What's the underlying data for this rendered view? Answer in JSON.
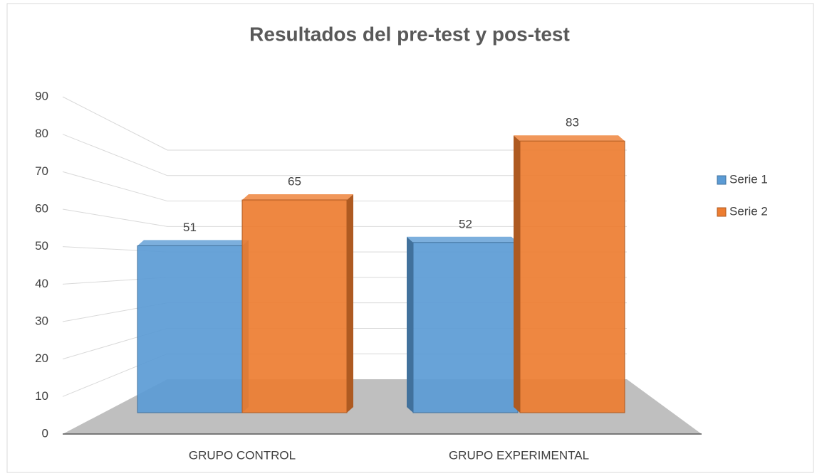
{
  "chart_data": {
    "type": "bar",
    "title": "Resultados del pre-test y pos-test",
    "categories": [
      "GRUPO CONTROL",
      "GRUPO EXPERIMENTAL"
    ],
    "series": [
      {
        "name": "Serie 1",
        "color": "#5b9bd5",
        "values": [
          51,
          52
        ]
      },
      {
        "name": "Serie 2",
        "color": "#ed7d31",
        "values": [
          65,
          83
        ]
      }
    ],
    "ylim": [
      0,
      90
    ],
    "yticks": [
      0,
      10,
      20,
      30,
      40,
      50,
      60,
      70,
      80,
      90
    ],
    "grid": true,
    "legend": "right"
  }
}
